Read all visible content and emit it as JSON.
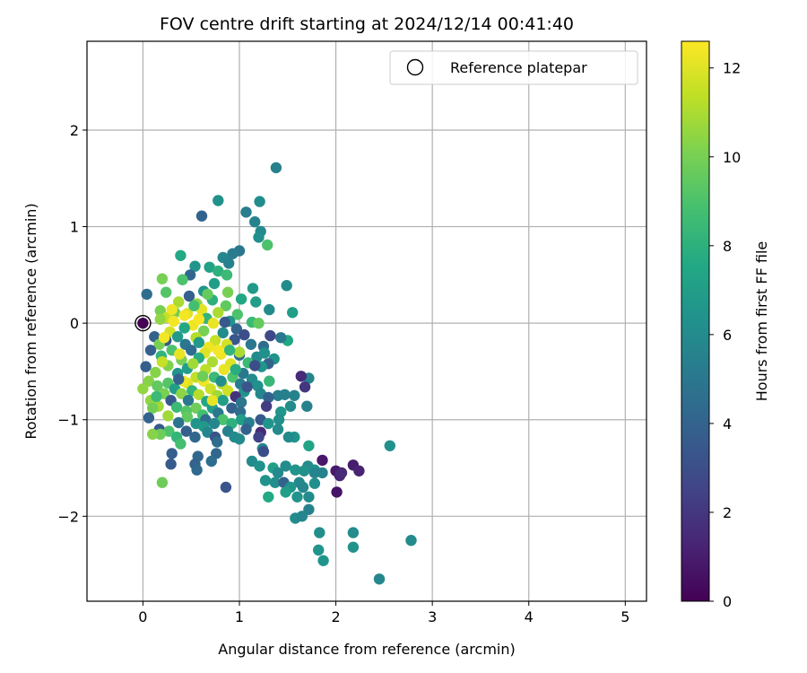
{
  "chart_data": {
    "type": "scatter",
    "title": "FOV centre drift starting at 2024/12/14 00:41:40",
    "xlabel": "Angular distance from reference (arcmin)",
    "ylabel": "Rotation from reference (arcmin)",
    "xlim": [
      -0.58,
      5.22
    ],
    "ylim": [
      -2.88,
      2.92
    ],
    "xticks": [
      0,
      1,
      2,
      3,
      4,
      5
    ],
    "yticks": [
      -2,
      -1,
      0,
      1,
      2
    ],
    "xtick_labels": [
      "0",
      "1",
      "2",
      "3",
      "4",
      "5"
    ],
    "ytick_labels": [
      "−2",
      "−1",
      "0",
      "1",
      "2"
    ],
    "grid": true,
    "legend": {
      "position": "top-right",
      "entries": [
        "Reference platepar"
      ]
    },
    "reference_point": {
      "x": 0,
      "y": 0
    },
    "colorbar": {
      "label": "Hours from first FF file",
      "colormap": "viridis",
      "range": [
        0,
        12.6
      ],
      "ticks": [
        0,
        2,
        4,
        6,
        8,
        10,
        12
      ],
      "tick_labels": [
        "0",
        "2",
        "4",
        "6",
        "8",
        "10",
        "12"
      ]
    },
    "points": [
      [
        1.38,
        1.61,
        5.5
      ],
      [
        0.78,
        1.27,
        6.3
      ],
      [
        1.21,
        1.26,
        6.1
      ],
      [
        0.61,
        1.11,
        4.0
      ],
      [
        1.07,
        1.15,
        5.3
      ],
      [
        1.16,
        1.05,
        5.6
      ],
      [
        1.22,
        0.95,
        5.9
      ],
      [
        1.2,
        0.89,
        6.2
      ],
      [
        1.29,
        0.81,
        9.0
      ],
      [
        1.0,
        0.75,
        5.0
      ],
      [
        0.93,
        0.72,
        5.2
      ],
      [
        0.83,
        0.68,
        5.8
      ],
      [
        0.39,
        0.7,
        7.6
      ],
      [
        0.89,
        0.62,
        5.5
      ],
      [
        0.54,
        0.59,
        6.5
      ],
      [
        0.69,
        0.58,
        7.2
      ],
      [
        0.78,
        0.54,
        8.0
      ],
      [
        0.87,
        0.5,
        8.5
      ],
      [
        0.2,
        0.46,
        10.0
      ],
      [
        0.49,
        0.5,
        4.2
      ],
      [
        1.49,
        0.39,
        6.0
      ],
      [
        0.41,
        0.45,
        9.0
      ],
      [
        0.74,
        0.41,
        7.0
      ],
      [
        0.63,
        0.33,
        6.5
      ],
      [
        1.14,
        0.36,
        6.8
      ],
      [
        0.04,
        0.3,
        4.5
      ],
      [
        0.24,
        0.32,
        9.2
      ],
      [
        0.48,
        0.28,
        3.8
      ],
      [
        0.88,
        0.32,
        10.0
      ],
      [
        1.02,
        0.25,
        7.5
      ],
      [
        0.37,
        0.22,
        11.0
      ],
      [
        0.56,
        0.2,
        10.5
      ],
      [
        0.72,
        0.24,
        8.0
      ],
      [
        0.86,
        0.18,
        9.5
      ],
      [
        1.17,
        0.22,
        7.0
      ],
      [
        1.55,
        0.11,
        7.0
      ],
      [
        1.31,
        0.14,
        6.0
      ],
      [
        0.18,
        0.13,
        10.0
      ],
      [
        0.33,
        0.11,
        9.8
      ],
      [
        0.46,
        0.1,
        12.0
      ],
      [
        0.61,
        0.14,
        12.1
      ],
      [
        0.78,
        0.11,
        11.0
      ],
      [
        0.98,
        0.09,
        9.0
      ],
      [
        0.25,
        0.06,
        11.5
      ],
      [
        0.66,
        0.05,
        8.2
      ],
      [
        0.18,
        0.04,
        10.5
      ],
      [
        0.9,
        0.02,
        6.5
      ],
      [
        1.13,
        0.01,
        8.5
      ],
      [
        1.2,
        0.0,
        9.6
      ],
      [
        0.32,
        0.02,
        12.4
      ],
      [
        0.52,
        -0.02,
        12.3
      ],
      [
        0.73,
        0.0,
        12.2
      ],
      [
        0.43,
        -0.05,
        7.5
      ],
      [
        0.97,
        -0.06,
        4.0
      ],
      [
        0.28,
        -0.09,
        11.8
      ],
      [
        0.63,
        -0.08,
        10.0
      ],
      [
        0.83,
        -0.1,
        6.0
      ],
      [
        1.05,
        -0.12,
        3.0
      ],
      [
        1.32,
        -0.13,
        2.8
      ],
      [
        1.5,
        -0.18,
        7.5
      ],
      [
        1.43,
        -0.15,
        5.0
      ],
      [
        0.12,
        -0.14,
        4.0
      ],
      [
        0.36,
        -0.14,
        6.8
      ],
      [
        0.24,
        -0.18,
        3.5
      ],
      [
        0.55,
        -0.15,
        11.2
      ],
      [
        0.75,
        -0.18,
        11.5
      ],
      [
        0.95,
        -0.17,
        3.4
      ],
      [
        1.12,
        -0.22,
        5.0
      ],
      [
        0.17,
        -0.22,
        10.0
      ],
      [
        0.44,
        -0.22,
        5.0
      ],
      [
        0.68,
        -0.25,
        12.3
      ],
      [
        0.87,
        -0.22,
        11.8
      ],
      [
        1.25,
        -0.24,
        4.5
      ],
      [
        0.08,
        -0.28,
        3.8
      ],
      [
        0.3,
        -0.28,
        9.0
      ],
      [
        0.5,
        -0.28,
        4.5
      ],
      [
        0.64,
        -0.31,
        12.0
      ],
      [
        0.81,
        -0.32,
        12.3
      ],
      [
        1.0,
        -0.33,
        4.5
      ],
      [
        1.18,
        -0.35,
        6.0
      ],
      [
        1.36,
        -0.37,
        6.4
      ],
      [
        0.19,
        -0.34,
        8.2
      ],
      [
        0.4,
        -0.38,
        10.0
      ],
      [
        0.58,
        -0.36,
        7.8
      ],
      [
        0.72,
        -0.4,
        11.0
      ],
      [
        0.91,
        -0.42,
        12.0
      ],
      [
        1.09,
        -0.41,
        8.5
      ],
      [
        1.3,
        -0.42,
        4.0
      ],
      [
        1.23,
        -0.45,
        6.5
      ],
      [
        0.03,
        -0.45,
        3.8
      ],
      [
        0.26,
        -0.44,
        10.2
      ],
      [
        0.46,
        -0.47,
        7.0
      ],
      [
        0.65,
        -0.48,
        11.3
      ],
      [
        0.84,
        -0.48,
        12.2
      ],
      [
        1.04,
        -0.52,
        5.0
      ],
      [
        1.72,
        -0.57,
        5.7
      ],
      [
        0.13,
        -0.51,
        10.3
      ],
      [
        0.36,
        -0.52,
        6.5
      ],
      [
        0.55,
        -0.56,
        11.4
      ],
      [
        0.74,
        -0.56,
        8.5
      ],
      [
        0.93,
        -0.56,
        9.0
      ],
      [
        1.13,
        -0.58,
        6.0
      ],
      [
        1.31,
        -0.6,
        8.4
      ],
      [
        1.64,
        -0.55,
        1.5
      ],
      [
        0.06,
        -0.6,
        10.3
      ],
      [
        0.26,
        -0.62,
        9.2
      ],
      [
        0.46,
        -0.62,
        12.0
      ],
      [
        0.63,
        -0.6,
        12.3
      ],
      [
        0.82,
        -0.63,
        11.2
      ],
      [
        1.01,
        -0.63,
        5.2
      ],
      [
        1.19,
        -0.65,
        6.3
      ],
      [
        1.68,
        -0.66,
        2.0
      ],
      [
        0.15,
        -0.65,
        9.5
      ],
      [
        0.33,
        -0.68,
        7.0
      ],
      [
        0.51,
        -0.7,
        8.2
      ],
      [
        0.7,
        -0.68,
        11.6
      ],
      [
        0.88,
        -0.7,
        11.7
      ],
      [
        1.05,
        -0.71,
        6.5
      ],
      [
        0.0,
        -0.68,
        10.5
      ],
      [
        0.22,
        -0.73,
        10.0
      ],
      [
        0.4,
        -0.73,
        10.4
      ],
      [
        0.58,
        -0.74,
        11.2
      ],
      [
        0.77,
        -0.75,
        10.8
      ],
      [
        0.96,
        -0.76,
        1.8
      ],
      [
        1.22,
        -0.73,
        5.8
      ],
      [
        1.4,
        -0.75,
        5.3
      ],
      [
        0.08,
        -0.8,
        10.5
      ],
      [
        0.29,
        -0.8,
        3.5
      ],
      [
        0.47,
        -0.8,
        5.0
      ],
      [
        0.66,
        -0.81,
        7.5
      ],
      [
        0.83,
        -0.8,
        7.0
      ],
      [
        1.02,
        -0.82,
        5.0
      ],
      [
        1.3,
        -0.77,
        4.0
      ],
      [
        1.47,
        -0.74,
        5.5
      ],
      [
        1.57,
        -0.75,
        5.6
      ],
      [
        0.16,
        -0.86,
        10.8
      ],
      [
        0.35,
        -0.87,
        8.5
      ],
      [
        0.55,
        -0.88,
        9.8
      ],
      [
        0.72,
        -0.88,
        7.0
      ],
      [
        0.92,
        -0.88,
        4.0
      ],
      [
        1.28,
        -0.86,
        2.2
      ],
      [
        1.7,
        -0.86,
        5.5
      ],
      [
        1.53,
        -0.86,
        6.0
      ],
      [
        0.1,
        -0.88,
        9.9
      ],
      [
        0.45,
        -0.91,
        9.2
      ],
      [
        0.62,
        -0.95,
        8.8
      ],
      [
        0.78,
        -0.93,
        5.0
      ],
      [
        1.01,
        -0.92,
        4.5
      ],
      [
        1.43,
        -0.92,
        6.6
      ],
      [
        0.26,
        -0.96,
        10.8
      ],
      [
        0.46,
        -0.97,
        9.5
      ],
      [
        0.65,
        -1.0,
        4.5
      ],
      [
        0.83,
        -1.0,
        9.0
      ],
      [
        1.02,
        -1.0,
        7.0
      ],
      [
        1.22,
        -1.0,
        3.5
      ],
      [
        1.41,
        -1.0,
        6.2
      ],
      [
        0.06,
        -0.98,
        4.0
      ],
      [
        0.37,
        -1.03,
        4.8
      ],
      [
        0.55,
        -1.04,
        6.5
      ],
      [
        0.74,
        -1.04,
        5.8
      ],
      [
        0.92,
        -1.04,
        8.0
      ],
      [
        1.1,
        -1.03,
        5.3
      ],
      [
        1.3,
        -1.04,
        6.5
      ],
      [
        0.17,
        -1.1,
        3.5
      ],
      [
        0.63,
        -1.07,
        6.8
      ],
      [
        0.88,
        -1.12,
        5.5
      ],
      [
        1.07,
        -1.1,
        4.0
      ],
      [
        0.27,
        -1.12,
        9.0
      ],
      [
        0.45,
        -1.12,
        3.8
      ],
      [
        0.67,
        -1.13,
        5.8
      ],
      [
        1.22,
        -1.13,
        1.5
      ],
      [
        1.4,
        -1.1,
        6.0
      ],
      [
        0.18,
        -1.15,
        9.8
      ],
      [
        0.35,
        -1.18,
        8.2
      ],
      [
        0.54,
        -1.18,
        4.2
      ],
      [
        0.75,
        -1.18,
        3.2
      ],
      [
        0.95,
        -1.18,
        6.0
      ],
      [
        1.2,
        -1.18,
        2.5
      ],
      [
        1.57,
        -1.18,
        6.5
      ],
      [
        1.51,
        -1.18,
        6.0
      ],
      [
        0.1,
        -1.15,
        10.3
      ],
      [
        0.39,
        -1.25,
        8.8
      ],
      [
        0.77,
        -1.23,
        4.5
      ],
      [
        1.0,
        -1.2,
        6.0
      ],
      [
        1.24,
        -1.3,
        5.7
      ],
      [
        1.72,
        -1.27,
        7.3
      ],
      [
        2.56,
        -1.27,
        6.3
      ],
      [
        0.3,
        -1.35,
        3.8
      ],
      [
        0.57,
        -1.38,
        4.2
      ],
      [
        0.76,
        -1.35,
        4.2
      ],
      [
        1.25,
        -1.33,
        3.0
      ],
      [
        1.86,
        -1.42,
        0.8
      ],
      [
        2.18,
        -1.47,
        1.0
      ],
      [
        0.29,
        -1.46,
        3.6
      ],
      [
        0.54,
        -1.46,
        4.0
      ],
      [
        0.71,
        -1.43,
        4.5
      ],
      [
        1.13,
        -1.43,
        6.0
      ],
      [
        1.21,
        -1.48,
        6.3
      ],
      [
        1.35,
        -1.5,
        7.0
      ],
      [
        1.48,
        -1.48,
        6.1
      ],
      [
        1.4,
        -1.55,
        5.9
      ],
      [
        1.58,
        -1.52,
        6.5
      ],
      [
        1.71,
        -1.48,
        6.0
      ],
      [
        1.78,
        -1.52,
        6.3
      ],
      [
        2.0,
        -1.53,
        0.9
      ],
      [
        2.04,
        -1.58,
        1.3
      ],
      [
        2.24,
        -1.53,
        1.2
      ],
      [
        1.67,
        -1.53,
        6.3
      ],
      [
        1.78,
        -1.55,
        5.7
      ],
      [
        1.86,
        -1.55,
        5.6
      ],
      [
        2.06,
        -1.55,
        1.5
      ],
      [
        0.56,
        -1.52,
        4.3
      ],
      [
        0.2,
        -1.65,
        9.8
      ],
      [
        0.86,
        -1.7,
        3.3
      ],
      [
        1.27,
        -1.63,
        6.4
      ],
      [
        1.37,
        -1.65,
        6.2
      ],
      [
        1.62,
        -1.65,
        5.9
      ],
      [
        1.46,
        -1.65,
        4.0
      ],
      [
        1.53,
        -1.7,
        6.5
      ],
      [
        1.78,
        -1.66,
        6.2
      ],
      [
        1.66,
        -1.7,
        5.8
      ],
      [
        1.48,
        -1.75,
        7.0
      ],
      [
        2.01,
        -1.75,
        0.7
      ],
      [
        1.3,
        -1.8,
        7.6
      ],
      [
        1.6,
        -1.8,
        6.5
      ],
      [
        1.72,
        -1.8,
        6.0
      ],
      [
        1.58,
        -2.02,
        6.0
      ],
      [
        1.65,
        -2.0,
        5.8
      ],
      [
        1.72,
        -1.93,
        5.5
      ],
      [
        1.83,
        -2.17,
        6.2
      ],
      [
        2.18,
        -2.17,
        6.0
      ],
      [
        1.82,
        -2.35,
        6.5
      ],
      [
        2.18,
        -2.32,
        6.4
      ],
      [
        2.78,
        -2.25,
        6.0
      ],
      [
        1.87,
        -2.46,
        6.5
      ],
      [
        2.45,
        -2.65,
        5.8
      ],
      [
        0.43,
        0.08,
        12.4
      ],
      [
        0.58,
        0.04,
        12.5
      ],
      [
        0.38,
        -0.32,
        12.2
      ],
      [
        0.78,
        -0.28,
        12.4
      ],
      [
        0.2,
        -0.4,
        11.5
      ],
      [
        0.52,
        -0.42,
        10.8
      ],
      [
        1.0,
        -0.3,
        11.0
      ],
      [
        0.42,
        -0.6,
        12.3
      ],
      [
        0.96,
        -0.48,
        7.8
      ],
      [
        0.3,
        0.14,
        12.3
      ],
      [
        0.22,
        -0.15,
        12.4
      ],
      [
        0.62,
        -0.55,
        9.8
      ],
      [
        0.72,
        -0.8,
        12.2
      ],
      [
        0.14,
        -0.76,
        8.5
      ],
      [
        0.37,
        -0.58,
        4.0
      ],
      [
        1.08,
        -0.66,
        3.3
      ],
      [
        1.16,
        -0.44,
        3.0
      ],
      [
        0.53,
        0.18,
        8.8
      ],
      [
        0.67,
        0.3,
        9.6
      ],
      [
        0.9,
        -0.28,
        8.2
      ],
      [
        0.58,
        -0.2,
        6.8
      ],
      [
        0.81,
        -0.6,
        6.2
      ],
      [
        0.85,
        0.01,
        3.5
      ],
      [
        1.26,
        -0.31,
        6.3
      ]
    ]
  }
}
